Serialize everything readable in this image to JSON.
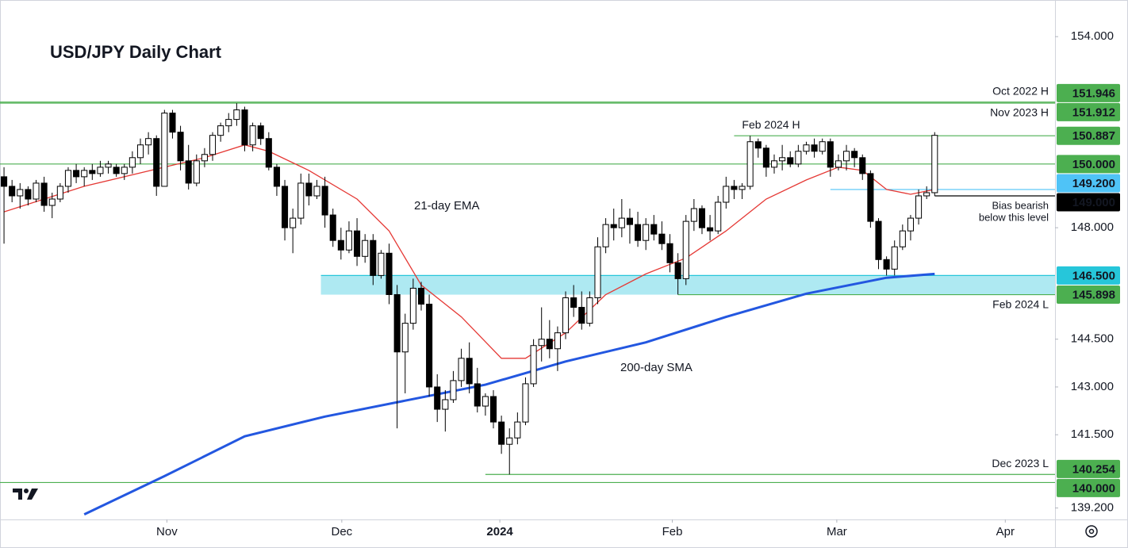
{
  "chart_data": {
    "type": "candlestick",
    "title": "USD/JPY Daily Chart",
    "xlim": [
      -0.5,
      131
    ],
    "xticks": [
      {
        "value": 20.3,
        "label": "Nov"
      },
      {
        "value": 42.1,
        "label": "Dec"
      },
      {
        "value": 61.8,
        "label": "2024"
      },
      {
        "value": 83.3,
        "label": "Feb"
      },
      {
        "value": 103.8,
        "label": "Mar"
      },
      {
        "value": 124.8,
        "label": "Apr"
      }
    ],
    "ylim": [
      138.84,
      155.15
    ],
    "yticks": [
      {
        "value": 154,
        "label": "154.000"
      },
      {
        "value": 148,
        "label": "148.000"
      },
      {
        "value": 144.5,
        "label": "144.500"
      },
      {
        "value": 143,
        "label": "143.000"
      },
      {
        "value": 141.5,
        "label": "141.500"
      },
      {
        "value": 139.2,
        "label": "139.200"
      }
    ],
    "ohlc": [
      [
        149.6,
        149.9,
        147.5,
        149.3
      ],
      [
        149.3,
        149.5,
        148.8,
        149.0
      ],
      [
        149.0,
        149.4,
        148.6,
        149.2
      ],
      [
        149.2,
        149.3,
        148.7,
        148.9
      ],
      [
        148.9,
        149.5,
        148.8,
        149.4
      ],
      [
        149.4,
        149.6,
        148.5,
        148.7
      ],
      [
        148.7,
        149.1,
        148.3,
        148.9
      ],
      [
        148.9,
        149.4,
        148.8,
        149.3
      ],
      [
        149.3,
        149.9,
        149.1,
        149.8
      ],
      [
        149.8,
        150.0,
        149.4,
        149.6
      ],
      [
        149.6,
        149.9,
        149.3,
        149.8
      ],
      [
        149.8,
        150.0,
        149.5,
        149.7
      ],
      [
        149.7,
        150.1,
        149.6,
        149.9
      ],
      [
        149.9,
        150.1,
        149.7,
        150.0
      ],
      [
        149.9,
        150.0,
        149.6,
        149.7
      ],
      [
        149.7,
        150.0,
        149.5,
        149.9
      ],
      [
        149.9,
        150.4,
        149.7,
        150.2
      ],
      [
        150.2,
        150.8,
        150.0,
        150.6
      ],
      [
        150.6,
        151.0,
        150.3,
        150.8
      ],
      [
        150.8,
        150.9,
        149.0,
        149.3
      ],
      [
        149.3,
        151.7,
        149.3,
        151.6
      ],
      [
        151.6,
        151.7,
        150.8,
        151.0
      ],
      [
        151.0,
        151.2,
        149.8,
        150.1
      ],
      [
        150.1,
        150.6,
        149.2,
        149.4
      ],
      [
        149.4,
        150.3,
        149.3,
        150.1
      ],
      [
        150.1,
        150.5,
        149.9,
        150.3
      ],
      [
        150.3,
        151.0,
        150.1,
        150.9
      ],
      [
        150.9,
        151.3,
        150.7,
        151.2
      ],
      [
        151.2,
        151.6,
        151.0,
        151.4
      ],
      [
        151.4,
        151.91,
        151.2,
        151.7
      ],
      [
        151.7,
        151.8,
        150.4,
        150.6
      ],
      [
        150.6,
        151.3,
        150.4,
        151.2
      ],
      [
        151.2,
        151.3,
        150.6,
        150.8
      ],
      [
        150.8,
        151.0,
        149.8,
        149.9
      ],
      [
        149.9,
        150.0,
        149.0,
        149.3
      ],
      [
        149.3,
        149.5,
        147.6,
        148.0
      ],
      [
        148.0,
        148.6,
        147.2,
        148.3
      ],
      [
        148.3,
        149.7,
        148.1,
        149.4
      ],
      [
        149.4,
        149.7,
        148.7,
        149.0
      ],
      [
        149.0,
        149.5,
        148.9,
        149.3
      ],
      [
        149.3,
        149.6,
        148.0,
        148.4
      ],
      [
        148.4,
        148.6,
        147.4,
        147.6
      ],
      [
        147.6,
        148.0,
        147.0,
        147.3
      ],
      [
        147.3,
        148.2,
        147.2,
        147.9
      ],
      [
        147.9,
        148.3,
        146.8,
        147.1
      ],
      [
        147.1,
        147.8,
        146.9,
        147.6
      ],
      [
        147.6,
        147.8,
        146.2,
        146.5
      ],
      [
        146.5,
        147.3,
        146.4,
        147.2
      ],
      [
        147.2,
        147.5,
        145.6,
        145.9
      ],
      [
        145.9,
        146.2,
        141.7,
        144.1
      ],
      [
        144.1,
        145.3,
        142.8,
        145.0
      ],
      [
        145.0,
        146.4,
        144.8,
        146.1
      ],
      [
        146.1,
        146.3,
        145.4,
        145.6
      ],
      [
        145.6,
        145.9,
        142.7,
        143.0
      ],
      [
        143.0,
        143.4,
        141.9,
        142.3
      ],
      [
        142.3,
        142.9,
        141.6,
        142.6
      ],
      [
        142.6,
        143.5,
        142.5,
        143.2
      ],
      [
        143.2,
        144.2,
        143.0,
        143.9
      ],
      [
        143.9,
        144.4,
        142.8,
        143.1
      ],
      [
        143.1,
        143.6,
        142.2,
        142.4
      ],
      [
        142.4,
        142.8,
        142.1,
        142.7
      ],
      [
        142.7,
        142.9,
        141.7,
        141.9
      ],
      [
        141.9,
        142.1,
        140.9,
        141.2
      ],
      [
        141.2,
        141.7,
        140.254,
        141.4
      ],
      [
        141.4,
        142.2,
        141.2,
        141.9
      ],
      [
        141.9,
        143.3,
        141.8,
        143.1
      ],
      [
        143.1,
        144.5,
        143.0,
        144.3
      ],
      [
        144.3,
        145.5,
        143.8,
        144.5
      ],
      [
        144.5,
        145.1,
        143.9,
        144.2
      ],
      [
        144.2,
        144.9,
        143.5,
        144.7
      ],
      [
        144.7,
        146.0,
        144.5,
        145.8
      ],
      [
        145.8,
        146.2,
        145.2,
        145.5
      ],
      [
        145.5,
        146.0,
        144.8,
        145.0
      ],
      [
        145.0,
        146.0,
        144.9,
        145.8
      ],
      [
        145.8,
        147.7,
        145.6,
        147.4
      ],
      [
        147.4,
        148.3,
        147.2,
        148.1
      ],
      [
        148.1,
        148.6,
        147.6,
        148.0
      ],
      [
        148.0,
        148.9,
        147.7,
        148.3
      ],
      [
        148.3,
        148.6,
        147.5,
        148.1
      ],
      [
        148.1,
        148.5,
        147.4,
        147.6
      ],
      [
        147.6,
        148.3,
        147.3,
        148.1
      ],
      [
        148.1,
        148.4,
        147.6,
        147.8
      ],
      [
        147.8,
        148.2,
        147.3,
        147.5
      ],
      [
        147.5,
        147.8,
        146.6,
        146.9
      ],
      [
        146.9,
        147.2,
        145.9,
        146.4
      ],
      [
        146.4,
        148.4,
        146.2,
        148.2
      ],
      [
        148.2,
        148.9,
        147.9,
        148.6
      ],
      [
        148.6,
        148.7,
        147.8,
        148.0
      ],
      [
        148.0,
        148.4,
        147.6,
        147.9
      ],
      [
        147.9,
        149.0,
        147.8,
        148.8
      ],
      [
        148.8,
        149.6,
        148.6,
        149.3
      ],
      [
        149.3,
        149.5,
        148.9,
        149.2
      ],
      [
        149.2,
        149.4,
        148.9,
        149.3
      ],
      [
        149.3,
        150.887,
        149.2,
        150.7
      ],
      [
        150.7,
        150.8,
        150.2,
        150.5
      ],
      [
        150.5,
        150.6,
        149.6,
        149.9
      ],
      [
        149.9,
        150.3,
        149.7,
        150.1
      ],
      [
        150.1,
        150.6,
        149.8,
        150.2
      ],
      [
        150.2,
        150.4,
        149.9,
        150.0
      ],
      [
        150.0,
        150.6,
        149.9,
        150.4
      ],
      [
        150.4,
        150.7,
        150.3,
        150.6
      ],
      [
        150.6,
        150.8,
        150.2,
        150.4
      ],
      [
        150.4,
        150.8,
        150.3,
        150.7
      ],
      [
        150.7,
        150.8,
        149.6,
        149.9
      ],
      [
        149.9,
        150.3,
        149.8,
        150.1
      ],
      [
        150.1,
        150.6,
        149.8,
        150.4
      ],
      [
        150.4,
        150.5,
        149.9,
        150.2
      ],
      [
        150.2,
        150.3,
        149.5,
        149.7
      ],
      [
        149.7,
        149.8,
        148.0,
        148.2
      ],
      [
        148.2,
        148.3,
        146.7,
        147.0
      ],
      [
        147.0,
        147.1,
        146.5,
        146.7
      ],
      [
        146.7,
        147.6,
        146.5,
        147.4
      ],
      [
        147.4,
        148.1,
        147.3,
        147.9
      ],
      [
        147.9,
        148.4,
        147.6,
        148.3
      ],
      [
        148.3,
        149.2,
        148.1,
        149.0
      ],
      [
        149.0,
        149.3,
        148.9,
        149.1
      ],
      [
        149.1,
        151.0,
        149.0,
        150.9
      ]
    ],
    "ema": {
      "name": "21-day EMA",
      "color": "#e53935",
      "x": [
        0,
        10,
        20,
        25,
        30,
        33,
        38,
        44,
        48,
        52,
        57,
        62,
        65,
        70,
        75,
        80,
        85,
        90,
        95,
        100,
        104,
        107,
        110,
        113,
        116
      ],
      "values": [
        148.5,
        149.3,
        149.9,
        150.2,
        150.6,
        150.4,
        149.8,
        148.9,
        147.9,
        146.2,
        145.2,
        143.9,
        143.9,
        144.7,
        145.9,
        146.55,
        147.05,
        147.9,
        148.9,
        149.5,
        149.9,
        149.8,
        149.2,
        149.05,
        149.2
      ]
    },
    "sma": {
      "name": "200-day SMA",
      "color": "#2357e0",
      "x": [
        10,
        20,
        30,
        40,
        50,
        60,
        70,
        80,
        90,
        100,
        110,
        116
      ],
      "values": [
        139.0,
        140.2,
        141.45,
        142.07,
        142.57,
        143.07,
        143.8,
        144.4,
        145.2,
        145.93,
        146.43,
        146.55
      ]
    },
    "levels": [
      {
        "value": 151.946,
        "label": "151.946",
        "note": "Oct 2022 H",
        "color": "#4caf50",
        "text_color": "#ffffff",
        "from": -0.5
      },
      {
        "value": 151.912,
        "label": "151.912",
        "note": "Nov 2023 H",
        "color": "#4caf50",
        "text_color": "#ffffff",
        "from": -0.5
      },
      {
        "value": 150.887,
        "label": "150.887",
        "note": "Feb 2024 H",
        "color": "#4caf50",
        "text_color": "#ffffff",
        "from": 91
      },
      {
        "value": 150,
        "label": "150.000",
        "color": "#4caf50",
        "text_color": "#ffffff",
        "from": -0.5
      },
      {
        "value": 149.2,
        "label": "149.200",
        "color": "#4fc3f7",
        "text_color": "#131722",
        "from": 103
      },
      {
        "value": 149,
        "label": "149.000",
        "note_lines": [
          "Bias bearish",
          "below this level"
        ],
        "color": "#000000",
        "text_color": "#ffffff",
        "from": 116
      },
      {
        "value": 146.5,
        "label": "146.500",
        "color": "#26c6da",
        "text_color": "#131722",
        "from": 39.5,
        "zone": true
      },
      {
        "value": 145.898,
        "label": "145.898",
        "note": "Feb 2024 L",
        "color": "#4caf50",
        "text_color": "#ffffff",
        "from": 84,
        "zone": true
      },
      {
        "value": 140.254,
        "label": "140.254",
        "note": "Dec 2023 L",
        "color": "#4caf50",
        "text_color": "#ffffff",
        "from": 60
      },
      {
        "value": 140,
        "label": "140.000",
        "color": "#4caf50",
        "text_color": "#ffffff",
        "from": -0.5
      }
    ]
  }
}
